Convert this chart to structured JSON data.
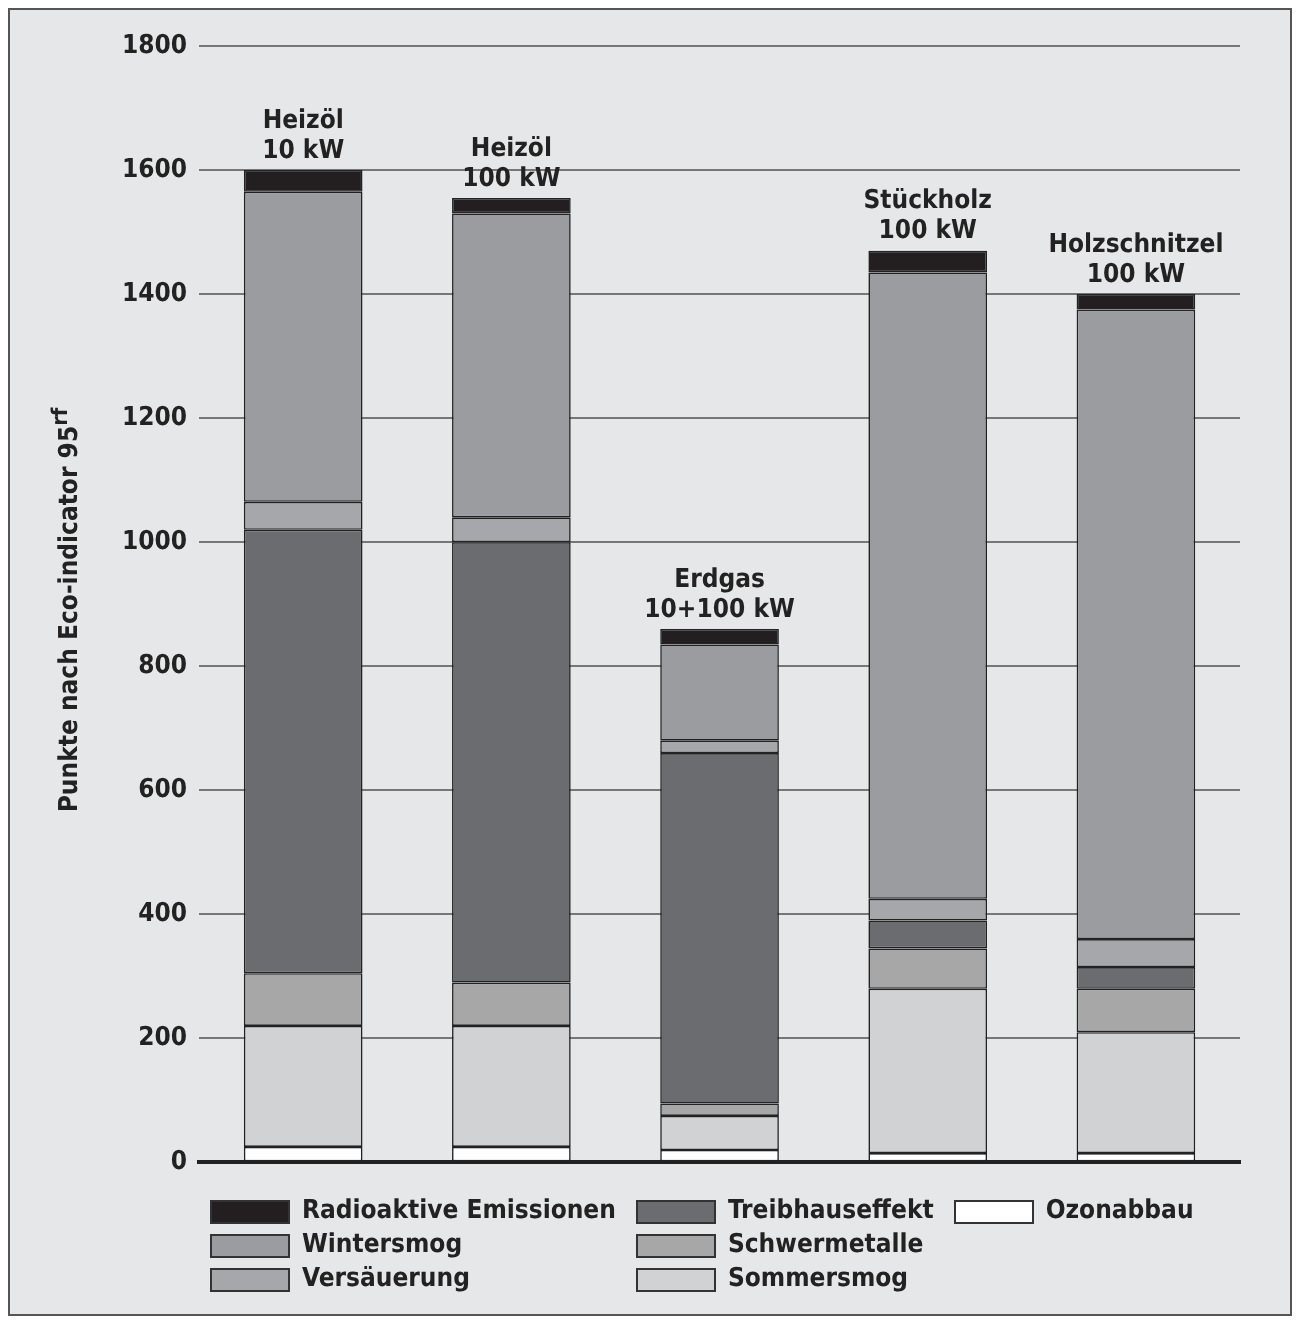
{
  "chart_data": {
    "type": "bar",
    "stacked": true,
    "ylabel": "Punkte nach Eco-indicator 95$^{rf}$",
    "categories": [
      "Heizöl 10 kW",
      "Heizöl 100 kW",
      "Erdgas 10+100 kW",
      "Stückholz 100 kW",
      "Holzschnitzel 100 kW"
    ],
    "series": [
      {
        "name": "Ozonabbau",
        "color": "#ffffff",
        "values": [
          25,
          25,
          20,
          15,
          15
        ]
      },
      {
        "name": "Sommersmog",
        "color": "#d1d2d4",
        "values": [
          195,
          195,
          55,
          265,
          195
        ]
      },
      {
        "name": "Schwermetalle",
        "color": "#a7a7a7",
        "values": [
          85,
          70,
          20,
          65,
          70
        ]
      },
      {
        "name": "Treibhauseffekt",
        "color": "#6b6c70",
        "values": [
          715,
          710,
          565,
          45,
          35
        ]
      },
      {
        "name": "Versäuerung",
        "color": "#a6a7aa",
        "values": [
          45,
          40,
          20,
          35,
          45
        ]
      },
      {
        "name": "Wintersmog",
        "color": "#9b9c9f",
        "values": [
          500,
          490,
          155,
          1010,
          1015
        ]
      },
      {
        "name": "Radioaktive Emissionen",
        "color": "#231f20",
        "values": [
          35,
          25,
          25,
          35,
          25
        ]
      }
    ],
    "ylim": [
      0,
      1800
    ],
    "yticks": [
      0,
      200,
      400,
      600,
      800,
      1000,
      1200,
      1400,
      1600,
      1800
    ],
    "grid": "y",
    "legend": "bottom"
  }
}
